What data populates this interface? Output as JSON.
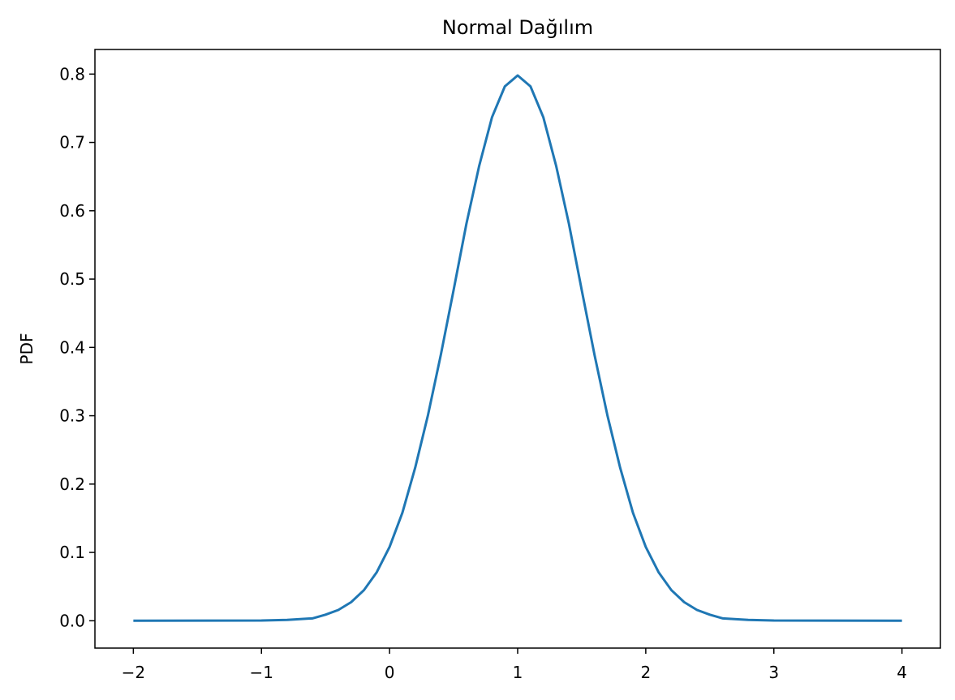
{
  "chart_data": {
    "type": "line",
    "title": "Normal Dağılım",
    "xlabel": "",
    "ylabel": "PDF",
    "xlim": [
      -2.3,
      4.3
    ],
    "ylim": [
      -0.04,
      0.836
    ],
    "x_ticks": [
      -2,
      -1,
      0,
      1,
      2,
      3,
      4
    ],
    "x_tick_labels": [
      "−2",
      "−1",
      "0",
      "1",
      "2",
      "3",
      "4"
    ],
    "y_ticks": [
      0.0,
      0.1,
      0.2,
      0.3,
      0.4,
      0.5,
      0.6,
      0.7,
      0.8
    ],
    "y_tick_labels": [
      "0.0",
      "0.1",
      "0.2",
      "0.3",
      "0.4",
      "0.5",
      "0.6",
      "0.7",
      "0.8"
    ],
    "grid": false,
    "legend": "none",
    "series": [
      {
        "color": "#1f77b4",
        "x": [
          -2.0,
          -1.0,
          -0.8,
          -0.6,
          -0.5,
          -0.4,
          -0.3,
          -0.2,
          -0.1,
          0.0,
          0.1,
          0.2,
          0.3,
          0.4,
          0.5,
          0.6,
          0.7,
          0.8,
          0.9,
          1.0,
          1.1,
          1.2,
          1.3,
          1.4,
          1.5,
          1.6,
          1.7,
          1.8,
          1.9,
          2.0,
          2.1,
          2.2,
          2.3,
          2.4,
          2.5,
          2.6,
          2.8,
          3.0,
          4.0
        ],
        "y": [
          0.0,
          0.0003,
          0.0012,
          0.0035,
          0.0089,
          0.0158,
          0.0272,
          0.0448,
          0.071,
          0.108,
          0.158,
          0.224,
          0.301,
          0.389,
          0.484,
          0.581,
          0.666,
          0.737,
          0.782,
          0.798,
          0.782,
          0.737,
          0.666,
          0.581,
          0.484,
          0.389,
          0.301,
          0.224,
          0.158,
          0.108,
          0.071,
          0.0448,
          0.0272,
          0.0158,
          0.0089,
          0.0035,
          0.0012,
          0.0003,
          0.0
        ]
      }
    ]
  }
}
